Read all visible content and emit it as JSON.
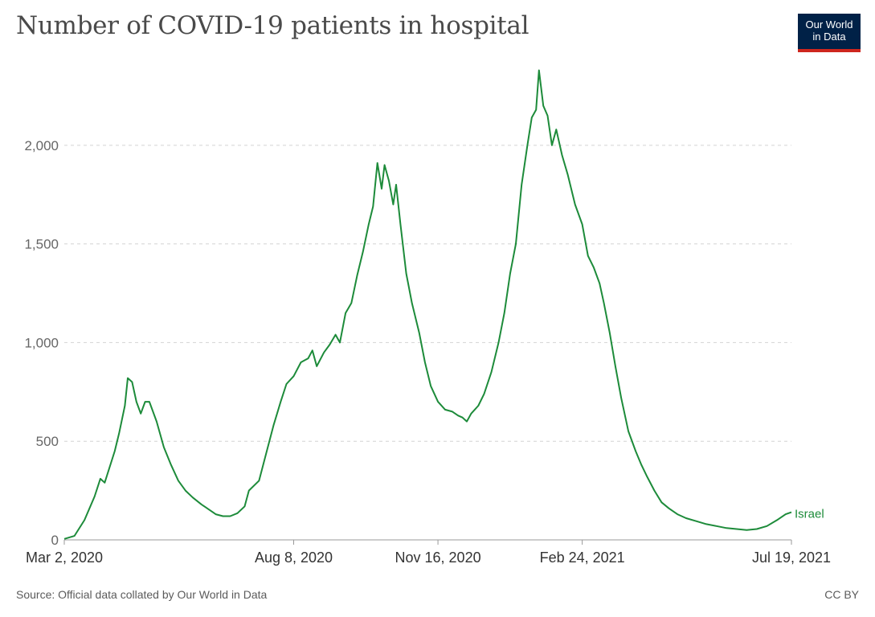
{
  "title": "Number of COVID-19 patients in hospital",
  "logo": {
    "line1": "Our World",
    "line2": "in Data",
    "colors": {
      "background": "#002147",
      "stripe": "#ce261e"
    }
  },
  "source": "Source: Official data collated by Our World in Data",
  "license": "CC BY",
  "chart_data": {
    "type": "line",
    "title": "Number of COVID-19 patients in hospital",
    "xlabel": "",
    "ylabel": "",
    "x_range": [
      "2020-03-02",
      "2021-07-19"
    ],
    "ylim": [
      0,
      2400
    ],
    "y_ticks": [
      {
        "value": 0,
        "label": "0"
      },
      {
        "value": 500,
        "label": "500"
      },
      {
        "value": 1000,
        "label": "1,000"
      },
      {
        "value": 1500,
        "label": "1,500"
      },
      {
        "value": 2000,
        "label": "2,000"
      }
    ],
    "x_ticks": [
      {
        "date": "2020-03-02",
        "label": "Mar 2, 2020"
      },
      {
        "date": "2020-08-08",
        "label": "Aug 8, 2020"
      },
      {
        "date": "2020-11-16",
        "label": "Nov 16, 2020"
      },
      {
        "date": "2021-02-24",
        "label": "Feb 24, 2021"
      },
      {
        "date": "2021-07-19",
        "label": "Jul 19, 2021"
      }
    ],
    "grid": "horizontal dashed",
    "series": [
      {
        "name": "Israel",
        "color": "#1d8b3a",
        "points": [
          [
            "2020-03-02",
            5
          ],
          [
            "2020-03-09",
            20
          ],
          [
            "2020-03-16",
            100
          ],
          [
            "2020-03-23",
            220
          ],
          [
            "2020-03-27",
            310
          ],
          [
            "2020-03-30",
            290
          ],
          [
            "2020-04-06",
            450
          ],
          [
            "2020-04-09",
            540
          ],
          [
            "2020-04-13",
            680
          ],
          [
            "2020-04-15",
            820
          ],
          [
            "2020-04-18",
            800
          ],
          [
            "2020-04-21",
            700
          ],
          [
            "2020-04-24",
            640
          ],
          [
            "2020-04-27",
            700
          ],
          [
            "2020-04-30",
            700
          ],
          [
            "2020-05-05",
            600
          ],
          [
            "2020-05-10",
            470
          ],
          [
            "2020-05-15",
            380
          ],
          [
            "2020-05-20",
            300
          ],
          [
            "2020-05-25",
            250
          ],
          [
            "2020-05-30",
            215
          ],
          [
            "2020-06-05",
            180
          ],
          [
            "2020-06-10",
            155
          ],
          [
            "2020-06-15",
            130
          ],
          [
            "2020-06-20",
            120
          ],
          [
            "2020-06-25",
            120
          ],
          [
            "2020-06-30",
            135
          ],
          [
            "2020-07-05",
            170
          ],
          [
            "2020-07-08",
            250
          ],
          [
            "2020-07-15",
            300
          ],
          [
            "2020-07-20",
            440
          ],
          [
            "2020-07-25",
            580
          ],
          [
            "2020-07-30",
            700
          ],
          [
            "2020-08-03",
            790
          ],
          [
            "2020-08-08",
            830
          ],
          [
            "2020-08-13",
            900
          ],
          [
            "2020-08-18",
            920
          ],
          [
            "2020-08-21",
            960
          ],
          [
            "2020-08-24",
            880
          ],
          [
            "2020-08-29",
            950
          ],
          [
            "2020-09-02",
            990
          ],
          [
            "2020-09-06",
            1040
          ],
          [
            "2020-09-09",
            1000
          ],
          [
            "2020-09-13",
            1150
          ],
          [
            "2020-09-17",
            1200
          ],
          [
            "2020-09-21",
            1340
          ],
          [
            "2020-09-25",
            1460
          ],
          [
            "2020-09-29",
            1600
          ],
          [
            "2020-10-02",
            1690
          ],
          [
            "2020-10-05",
            1910
          ],
          [
            "2020-10-08",
            1780
          ],
          [
            "2020-10-10",
            1900
          ],
          [
            "2020-10-13",
            1820
          ],
          [
            "2020-10-16",
            1700
          ],
          [
            "2020-10-18",
            1800
          ],
          [
            "2020-10-21",
            1600
          ],
          [
            "2020-10-25",
            1350
          ],
          [
            "2020-10-29",
            1200
          ],
          [
            "2020-11-03",
            1050
          ],
          [
            "2020-11-07",
            900
          ],
          [
            "2020-11-11",
            780
          ],
          [
            "2020-11-16",
            700
          ],
          [
            "2020-11-21",
            660
          ],
          [
            "2020-11-26",
            650
          ],
          [
            "2020-11-30",
            630
          ],
          [
            "2020-12-03",
            620
          ],
          [
            "2020-12-06",
            600
          ],
          [
            "2020-12-09",
            640
          ],
          [
            "2020-12-14",
            680
          ],
          [
            "2020-12-18",
            740
          ],
          [
            "2020-12-23",
            850
          ],
          [
            "2020-12-28",
            1000
          ],
          [
            "2021-01-01",
            1150
          ],
          [
            "2021-01-05",
            1350
          ],
          [
            "2021-01-09",
            1500
          ],
          [
            "2021-01-13",
            1800
          ],
          [
            "2021-01-17",
            2000
          ],
          [
            "2021-01-20",
            2140
          ],
          [
            "2021-01-23",
            2180
          ],
          [
            "2021-01-25",
            2380
          ],
          [
            "2021-01-28",
            2200
          ],
          [
            "2021-01-31",
            2150
          ],
          [
            "2021-02-03",
            2000
          ],
          [
            "2021-02-06",
            2080
          ],
          [
            "2021-02-10",
            1950
          ],
          [
            "2021-02-14",
            1850
          ],
          [
            "2021-02-19",
            1700
          ],
          [
            "2021-02-24",
            1600
          ],
          [
            "2021-02-28",
            1440
          ],
          [
            "2021-03-04",
            1380
          ],
          [
            "2021-03-08",
            1300
          ],
          [
            "2021-03-11",
            1200
          ],
          [
            "2021-03-15",
            1050
          ],
          [
            "2021-03-19",
            880
          ],
          [
            "2021-03-23",
            720
          ],
          [
            "2021-03-28",
            550
          ],
          [
            "2021-04-02",
            450
          ],
          [
            "2021-04-06",
            380
          ],
          [
            "2021-04-10",
            320
          ],
          [
            "2021-04-15",
            250
          ],
          [
            "2021-04-20",
            190
          ],
          [
            "2021-04-25",
            160
          ],
          [
            "2021-05-01",
            130
          ],
          [
            "2021-05-07",
            110
          ],
          [
            "2021-05-14",
            95
          ],
          [
            "2021-05-21",
            80
          ],
          [
            "2021-05-28",
            70
          ],
          [
            "2021-06-04",
            60
          ],
          [
            "2021-06-11",
            55
          ],
          [
            "2021-06-18",
            50
          ],
          [
            "2021-06-25",
            55
          ],
          [
            "2021-07-02",
            70
          ],
          [
            "2021-07-09",
            100
          ],
          [
            "2021-07-15",
            130
          ],
          [
            "2021-07-19",
            140
          ]
        ]
      }
    ]
  }
}
